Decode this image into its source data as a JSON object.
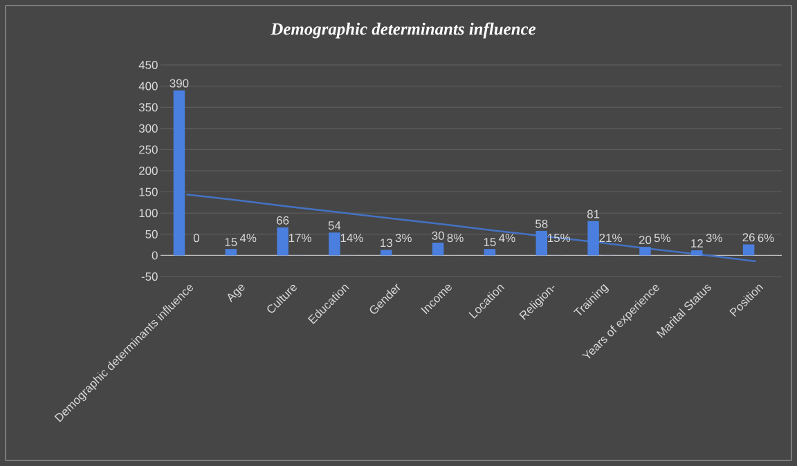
{
  "chart_data": {
    "type": "bar",
    "title": "Demographic determinants influence",
    "categories": [
      "Demographic determinants influence",
      "Age",
      "Culture",
      "Education",
      "Gender",
      "Income",
      "Location",
      "Religion-",
      "Training",
      "Years of experience",
      "Marital Status",
      "Position"
    ],
    "series": [
      {
        "color": "#4a7fe0",
        "values": [
          390,
          15,
          66,
          54,
          13,
          30,
          15,
          58,
          81,
          20,
          12,
          26
        ],
        "value_labels": [
          "390",
          "15",
          "66",
          "54",
          "13",
          "30",
          "15",
          "58",
          "81",
          "20",
          "12",
          "26"
        ]
      },
      {
        "color": "#4a7fe0",
        "values": [
          0,
          0.04,
          0.17,
          0.14,
          0.03,
          0.08,
          0.04,
          0.15,
          0.21,
          0.05,
          0.03,
          0.06
        ],
        "value_labels": [
          "0",
          "4%",
          "17%",
          "14%",
          "3%",
          "8%",
          "4%",
          "15%",
          "21%",
          "5%",
          "3%",
          "6%"
        ]
      },
      {
        "type": "line",
        "color": "#4472c4",
        "values": [
          144,
          130,
          115,
          101,
          87,
          73,
          58,
          44,
          30,
          15,
          1,
          -14
        ]
      }
    ],
    "ylim": [
      -50,
      450
    ],
    "yticks": [
      -50,
      0,
      50,
      100,
      150,
      200,
      250,
      300,
      350,
      400,
      450
    ],
    "grid": "y"
  }
}
